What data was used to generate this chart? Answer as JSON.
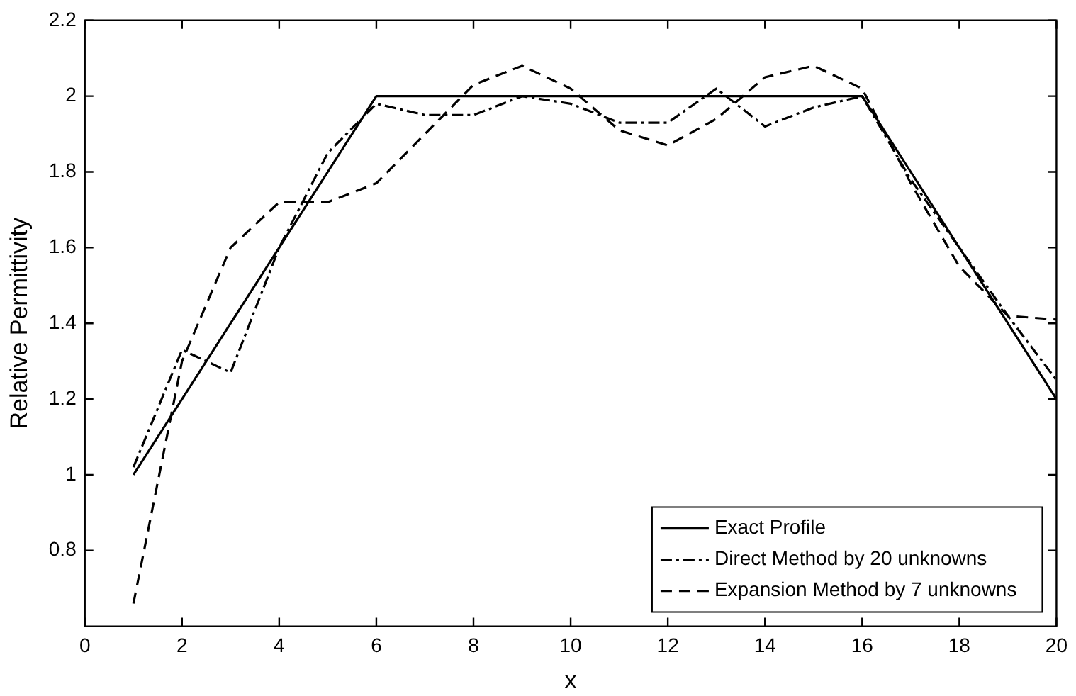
{
  "chart_data": {
    "type": "line",
    "xlabel": "x",
    "ylabel": "Relative Permittivity",
    "x": [
      1,
      2,
      3,
      4,
      5,
      6,
      7,
      8,
      9,
      10,
      11,
      12,
      13,
      14,
      15,
      16,
      17,
      18,
      19,
      20
    ],
    "xlim": [
      0,
      20
    ],
    "xticks": [
      0,
      2,
      4,
      6,
      8,
      10,
      12,
      14,
      16,
      18,
      20
    ],
    "ylim": [
      0.6,
      2.2
    ],
    "yticks": [
      0.8,
      1,
      1.2,
      1.4,
      1.6,
      1.8,
      2,
      2.2
    ],
    "grid": false,
    "legend": "bottom right",
    "marker": "none",
    "series": [
      {
        "name": "Exact Profile",
        "color": "#000000",
        "line_style": "solid",
        "values": [
          1,
          1.2,
          1.4,
          1.6,
          1.8,
          2,
          2,
          2,
          2,
          2,
          2,
          2,
          2,
          2,
          2,
          2,
          1.8,
          1.6,
          1.4,
          1.2
        ]
      },
      {
        "name": "Direct Method by 20 unknowns",
        "color": "#000000",
        "line_style": "dashdot",
        "values": [
          1.02,
          1.33,
          1.27,
          1.6,
          1.85,
          1.98,
          1.95,
          1.95,
          2.0,
          1.98,
          1.93,
          1.93,
          2.02,
          1.92,
          1.97,
          2.0,
          1.78,
          1.6,
          1.42,
          1.25
        ]
      },
      {
        "name": "Expansion Method by 7 unknowns",
        "color": "#000000",
        "line_style": "dashed",
        "values": [
          0.66,
          1.3,
          1.6,
          1.72,
          1.72,
          1.77,
          1.9,
          2.03,
          2.08,
          2.02,
          1.91,
          1.87,
          1.94,
          2.05,
          2.08,
          2.02,
          1.77,
          1.55,
          1.42,
          1.41
        ]
      }
    ]
  }
}
